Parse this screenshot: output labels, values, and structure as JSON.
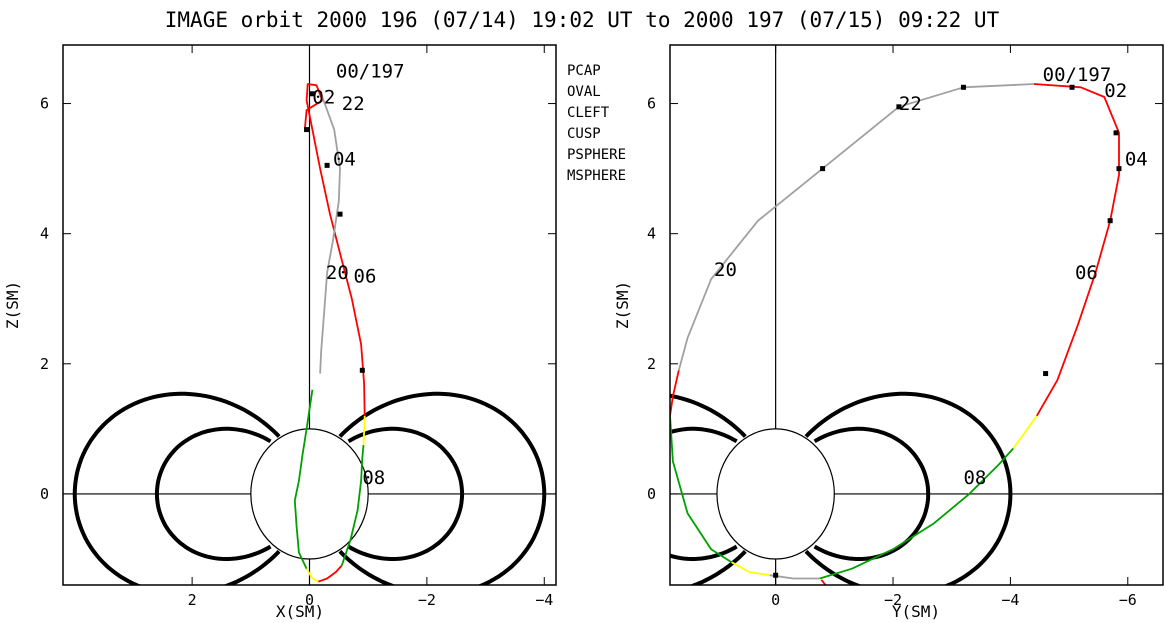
{
  "title": "IMAGE orbit 2000 196 (07/14) 19:02 UT to 2000 197 (07/15) 09:22 UT",
  "legend": [
    {
      "label": "PCAP",
      "color": "#a0a0a0"
    },
    {
      "label": "OVAL",
      "color": "#ff0000"
    },
    {
      "label": "CLEFT",
      "color": "#0000ff"
    },
    {
      "label": "CUSP",
      "color": "#000000"
    },
    {
      "label": "PSPHERE",
      "color": "#00a000"
    },
    {
      "label": "MSPHERE",
      "color": "#ffff00"
    }
  ],
  "chart_data": [
    {
      "type": "line",
      "xlabel": "X(SM)",
      "ylabel": "Z(SM)",
      "xlim": [
        4.2,
        -4.2
      ],
      "ylim": [
        -1.4,
        6.9
      ],
      "xticks": [
        2,
        0,
        -2,
        -4
      ],
      "xticklabels": [
        "2",
        "0",
        "−2",
        "−4"
      ],
      "yticks": [
        0,
        2,
        4,
        6
      ],
      "yticklabels": [
        "0",
        "2",
        "4",
        "6"
      ],
      "series": [
        {
          "color": "#00a000",
          "points": [
            [
              0.25,
              -0.1
            ],
            [
              0.22,
              -0.5
            ],
            [
              0.18,
              -0.9
            ],
            [
              0.05,
              -1.15
            ]
          ]
        },
        {
          "color": "#ffff00",
          "points": [
            [
              0.05,
              -1.15
            ],
            [
              -0.05,
              -1.3
            ],
            [
              -0.15,
              -1.35
            ]
          ]
        },
        {
          "color": "#ff0000",
          "points": [
            [
              -0.15,
              -1.35
            ],
            [
              -0.3,
              -1.3
            ],
            [
              -0.45,
              -1.2
            ],
            [
              -0.55,
              -1.1
            ]
          ]
        },
        {
          "color": "#00a000",
          "points": [
            [
              -0.55,
              -1.1
            ],
            [
              -0.7,
              -0.7
            ],
            [
              -0.82,
              -0.25
            ],
            [
              -0.88,
              0.2
            ],
            [
              -0.9,
              0.55
            ],
            [
              -0.92,
              0.75
            ]
          ]
        },
        {
          "color": "#ffff00",
          "points": [
            [
              -0.92,
              0.75
            ],
            [
              -0.93,
              0.95
            ],
            [
              -0.94,
              1.2
            ]
          ]
        },
        {
          "color": "#ff0000",
          "points": [
            [
              -0.94,
              1.2
            ],
            [
              -0.93,
              1.7
            ],
            [
              -0.88,
              2.3
            ],
            [
              -0.72,
              3.0
            ],
            [
              -0.52,
              3.7
            ],
            [
              -0.35,
              4.3
            ],
            [
              -0.18,
              5.0
            ],
            [
              -0.05,
              5.6
            ],
            [
              0.05,
              6.05
            ],
            [
              0.03,
              6.3
            ],
            [
              -0.12,
              6.28
            ],
            [
              -0.22,
              6.05
            ],
            [
              0.05,
              5.9
            ],
            [
              0.08,
              5.6
            ]
          ]
        },
        {
          "color": "#a0a0a0",
          "points": [
            [
              -0.2,
              6.15
            ],
            [
              -0.42,
              5.6
            ],
            [
              -0.52,
              5.0
            ],
            [
              -0.5,
              4.5
            ],
            [
              -0.4,
              3.9
            ],
            [
              -0.3,
              3.4
            ],
            [
              -0.25,
              2.8
            ],
            [
              -0.2,
              2.2
            ],
            [
              -0.18,
              1.85
            ]
          ]
        },
        {
          "color": "#00a000",
          "points": [
            [
              -0.05,
              1.6
            ],
            [
              0.05,
              1.0
            ],
            [
              0.12,
              0.6
            ],
            [
              0.18,
              0.2
            ],
            [
              0.25,
              -0.1
            ]
          ]
        }
      ],
      "markers": [
        [
          0.05,
          5.6
        ],
        [
          -0.3,
          5.05
        ],
        [
          -0.52,
          4.3
        ],
        [
          -0.9,
          1.9
        ],
        [
          -0.05,
          6.15
        ]
      ],
      "time_labels": [
        {
          "text": "00/197",
          "x": -0.45,
          "y": 6.4
        },
        {
          "text": "02",
          "x": -0.05,
          "y": 6.0
        },
        {
          "text": "22",
          "x": -0.55,
          "y": 5.9
        },
        {
          "text": "04",
          "x": -0.4,
          "y": 5.05
        },
        {
          "text": "20",
          "x": -0.28,
          "y": 3.3
        },
        {
          "text": "06",
          "x": -0.75,
          "y": 3.25
        },
        {
          "text": "08",
          "x": -0.9,
          "y": 0.15
        }
      ]
    },
    {
      "type": "line",
      "xlabel": "Y(SM)",
      "ylabel": "Z(SM)",
      "xlim": [
        1.8,
        -6.6
      ],
      "ylim": [
        -1.4,
        6.9
      ],
      "xticks": [
        0,
        -2,
        -4,
        -6
      ],
      "xticklabels": [
        "0",
        "−2",
        "−4",
        "−6"
      ],
      "yticks": [
        0,
        2,
        4,
        6
      ],
      "yticklabels": [
        "0",
        "2",
        "4",
        "6"
      ],
      "series": [
        {
          "color": "#a0a0a0",
          "points": [
            [
              -4.4,
              6.3
            ],
            [
              -3.2,
              6.25
            ],
            [
              -2.1,
              5.95
            ],
            [
              -0.8,
              5.0
            ],
            [
              0.3,
              4.2
            ],
            [
              1.1,
              3.3
            ],
            [
              1.5,
              2.4
            ],
            [
              1.65,
              1.9
            ]
          ]
        },
        {
          "color": "#ff0000",
          "points": [
            [
              1.65,
              1.9
            ],
            [
              1.75,
              1.5
            ],
            [
              1.8,
              1.2
            ]
          ]
        },
        {
          "color": "#00a000",
          "points": [
            [
              1.8,
              1.2
            ],
            [
              1.75,
              0.5
            ],
            [
              1.5,
              -0.3
            ],
            [
              1.1,
              -0.85
            ],
            [
              0.75,
              -1.05
            ]
          ]
        },
        {
          "color": "#ffff00",
          "points": [
            [
              0.75,
              -1.05
            ],
            [
              0.45,
              -1.2
            ],
            [
              0.1,
              -1.25
            ]
          ]
        },
        {
          "color": "#a0a0a0",
          "points": [
            [
              0.1,
              -1.25
            ],
            [
              -0.3,
              -1.3
            ],
            [
              -0.75,
              -1.3
            ]
          ]
        },
        {
          "color": "#00a000",
          "points": [
            [
              -0.75,
              -1.3
            ],
            [
              -1.3,
              -1.15
            ],
            [
              -2.0,
              -0.85
            ],
            [
              -2.7,
              -0.45
            ],
            [
              -3.3,
              0.0
            ],
            [
              -3.8,
              0.45
            ],
            [
              -4.05,
              0.7
            ]
          ]
        },
        {
          "color": "#ffff00",
          "points": [
            [
              -4.05,
              0.7
            ],
            [
              -4.25,
              0.95
            ],
            [
              -4.45,
              1.2
            ]
          ]
        },
        {
          "color": "#ff0000",
          "points": [
            [
              -4.45,
              1.2
            ],
            [
              -4.8,
              1.75
            ],
            [
              -5.15,
              2.6
            ],
            [
              -5.45,
              3.4
            ],
            [
              -5.7,
              4.2
            ],
            [
              -5.85,
              4.9
            ],
            [
              -5.85,
              5.55
            ],
            [
              -5.6,
              6.1
            ],
            [
              -5.2,
              6.25
            ],
            [
              -4.4,
              6.3
            ]
          ]
        },
        {
          "color": "#ff0000",
          "points": [
            [
              -0.78,
              -1.32
            ],
            [
              -0.85,
              -1.4
            ]
          ]
        }
      ],
      "markers": [
        [
          -0.8,
          5.0
        ],
        [
          -2.1,
          5.95
        ],
        [
          -3.2,
          6.25
        ],
        [
          -5.05,
          6.25
        ],
        [
          -5.8,
          5.55
        ],
        [
          -5.85,
          5.0
        ],
        [
          -5.7,
          4.2
        ],
        [
          -4.6,
          1.85
        ],
        [
          0.0,
          -1.25
        ]
      ],
      "time_labels": [
        {
          "text": "00/197",
          "x": -4.55,
          "y": 6.35
        },
        {
          "text": "02",
          "x": -5.6,
          "y": 6.1
        },
        {
          "text": "22",
          "x": -2.1,
          "y": 5.9
        },
        {
          "text": "04",
          "x": -5.95,
          "y": 5.05
        },
        {
          "text": "20",
          "x": 1.05,
          "y": 3.35
        },
        {
          "text": "06",
          "x": -5.1,
          "y": 3.3
        },
        {
          "text": "08",
          "x": -3.2,
          "y": 0.15
        }
      ]
    }
  ]
}
